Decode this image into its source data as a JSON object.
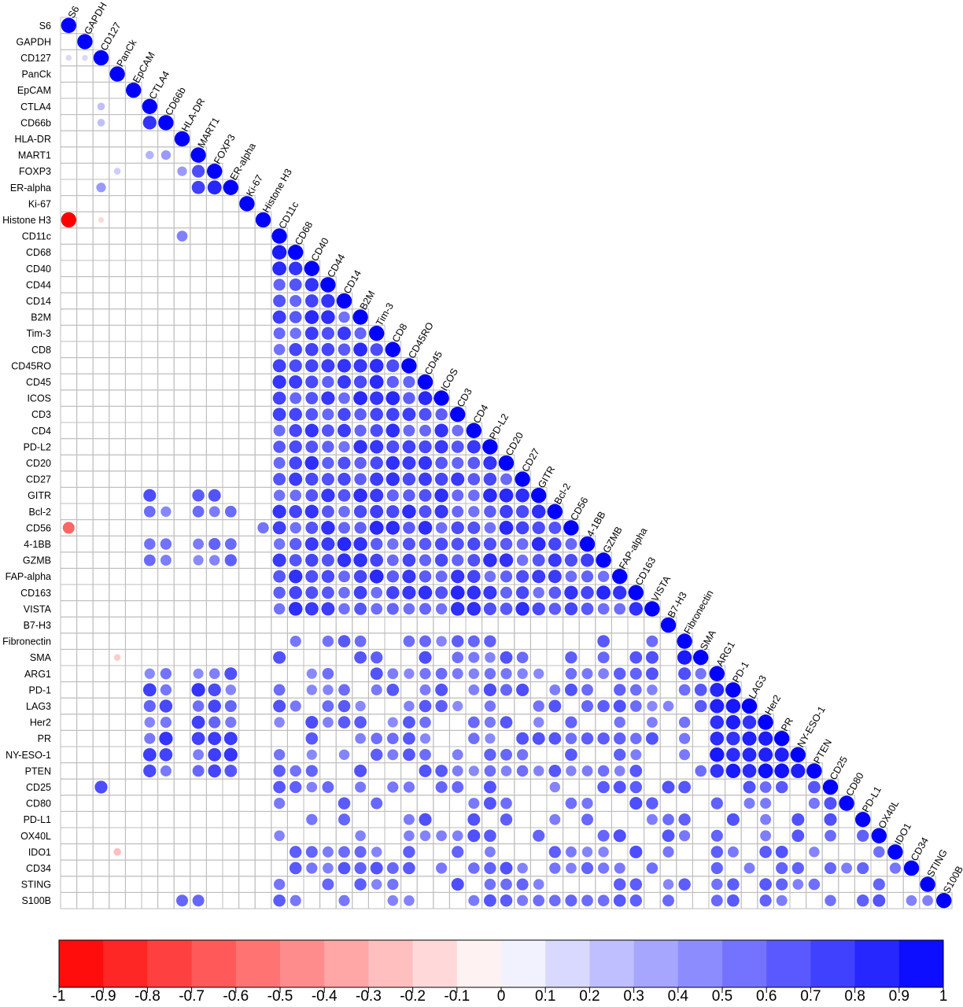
{
  "chart_data": {
    "type": "heatmap",
    "variant": "lower-triangular correlation matrix (circles)",
    "labels": [
      "S6",
      "GAPDH",
      "CD127",
      "PanCk",
      "EpCAM",
      "CTLA4",
      "CD66b",
      "HLA-DR",
      "MART1",
      "FOXP3",
      "ER-alpha",
      "Ki-67",
      "Histone H3",
      "CD11c",
      "CD68",
      "CD40",
      "CD44",
      "CD14",
      "B2M",
      "Tim-3",
      "CD8",
      "CD45RO",
      "CD45",
      "ICOS",
      "CD3",
      "CD4",
      "PD-L2",
      "CD20",
      "CD27",
      "GITR",
      "Bcl-2",
      "CD56",
      "4-1BB",
      "GZMB",
      "FAP-alpha",
      "CD163",
      "VISTA",
      "B7-H3",
      "Fibronectin",
      "SMA",
      "ARG1",
      "PD-1",
      "LAG3",
      "Her2",
      "PR",
      "NY-ESO-1",
      "PTEN",
      "CD25",
      "CD80",
      "PD-L1",
      "OX40L",
      "IDO1",
      "CD34",
      "STING",
      "S100B"
    ],
    "groups": {
      "immune_core": [
        "CD11c",
        "CD68",
        "CD40",
        "CD44",
        "CD14",
        "B2M",
        "Tim-3",
        "CD8",
        "CD45RO",
        "CD45",
        "ICOS",
        "CD3",
        "CD4",
        "PD-L2",
        "CD20",
        "CD27",
        "GITR",
        "Bcl-2",
        "CD56",
        "4-1BB",
        "GZMB",
        "FAP-alpha",
        "CD163",
        "VISTA"
      ],
      "tumor_core": [
        "ARG1",
        "PD-1",
        "LAG3",
        "Her2",
        "PR",
        "NY-ESO-1",
        "PTEN"
      ]
    },
    "key_cells": [
      {
        "row": "CD127",
        "col": "S6",
        "r": 0.15
      },
      {
        "row": "CD127",
        "col": "GAPDH",
        "r": 0.15
      },
      {
        "row": "CTLA4",
        "col": "CD127",
        "r": 0.25
      },
      {
        "row": "CD66b",
        "col": "CD127",
        "r": 0.25
      },
      {
        "row": "CD66b",
        "col": "CTLA4",
        "r": 0.8
      },
      {
        "row": "MART1",
        "col": "CTLA4",
        "r": 0.3
      },
      {
        "row": "MART1",
        "col": "CD66b",
        "r": 0.4
      },
      {
        "row": "FOXP3",
        "col": "PanCk",
        "r": 0.2
      },
      {
        "row": "FOXP3",
        "col": "HLA-DR",
        "r": 0.4
      },
      {
        "row": "FOXP3",
        "col": "MART1",
        "r": 0.7
      },
      {
        "row": "ER-alpha",
        "col": "CD127",
        "r": 0.4
      },
      {
        "row": "ER-alpha",
        "col": "MART1",
        "r": 0.75
      },
      {
        "row": "ER-alpha",
        "col": "FOXP3",
        "r": 0.85
      },
      {
        "row": "Histone H3",
        "col": "S6",
        "r": -1.0
      },
      {
        "row": "Histone H3",
        "col": "CD127",
        "r": -0.15
      },
      {
        "row": "CD11c",
        "col": "HLA-DR",
        "r": 0.5
      },
      {
        "row": "CD68",
        "col": "CD11c",
        "r": 0.9
      },
      {
        "row": "CD40",
        "col": "CD68",
        "r": 0.8
      },
      {
        "row": "CD44",
        "col": "CD40",
        "r": 0.8
      },
      {
        "row": "CD14",
        "col": "CD44",
        "r": 0.8
      },
      {
        "row": "CD56",
        "col": "S6",
        "r": -0.6
      },
      {
        "row": "CD56",
        "col": "Histone H3",
        "r": 0.55
      },
      {
        "row": "SMA",
        "col": "PanCk",
        "r": -0.2
      },
      {
        "row": "SMA",
        "col": "Fibronectin",
        "r": 0.9
      },
      {
        "row": "CD25",
        "col": "CD127",
        "r": 0.7
      },
      {
        "row": "IDO1",
        "col": "PanCk",
        "r": -0.25
      },
      {
        "row": "IDO1",
        "col": "B2M",
        "r": 0.6
      },
      {
        "row": "S100B",
        "col": "HLA-DR",
        "r": 0.6
      },
      {
        "row": "S100B",
        "col": "MART1",
        "r": 0.6
      },
      {
        "row": "S100B",
        "col": "STING",
        "r": 0.5
      }
    ],
    "color_scale": {
      "min": -1,
      "max": 1,
      "ticks": [
        "-1",
        "-0.9",
        "-0.8",
        "-0.7",
        "-0.6",
        "-0.5",
        "-0.4",
        "-0.3",
        "-0.2",
        "-0.1",
        "0",
        "0.1",
        "0.2",
        "0.3",
        "0.4",
        "0.5",
        "0.6",
        "0.7",
        "0.8",
        "0.9",
        "1"
      ],
      "negative_color": "#ff0000",
      "zero_color": "#ffffff",
      "positive_color": "#0000ff"
    },
    "grid": true,
    "legend_position": "bottom"
  }
}
